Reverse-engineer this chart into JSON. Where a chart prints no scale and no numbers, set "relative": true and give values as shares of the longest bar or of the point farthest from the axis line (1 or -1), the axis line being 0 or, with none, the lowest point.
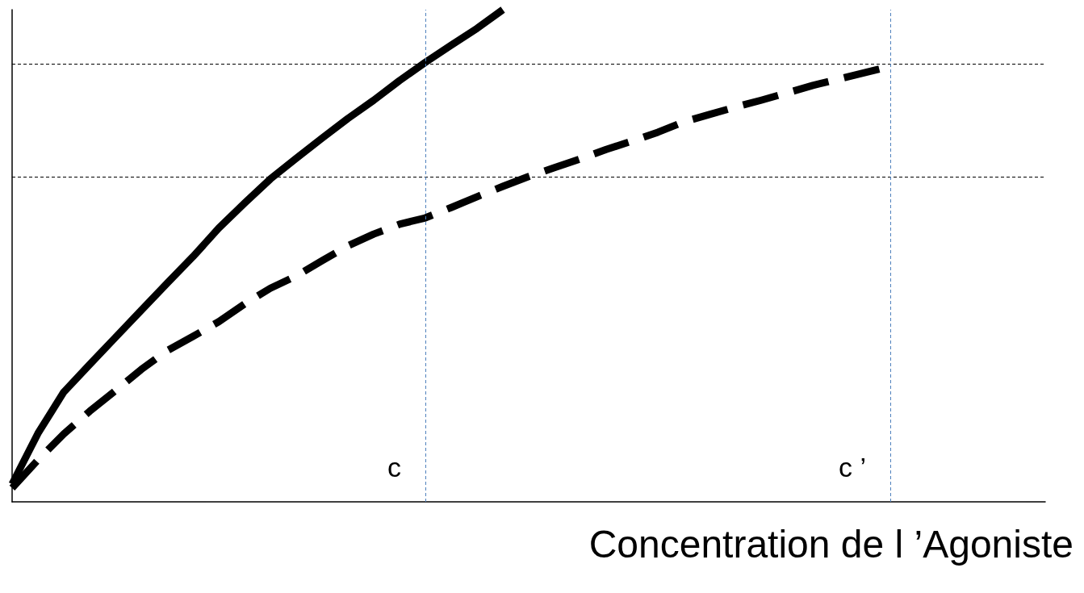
{
  "chart_data": {
    "type": "line",
    "relative": true,
    "xlabel": "Concentration de l ’Agoniste",
    "grid": false,
    "marker": "none",
    "categories": [
      null,
      null,
      null,
      null,
      null,
      null,
      null,
      null,
      null,
      null,
      null,
      null,
      null,
      null,
      null,
      null,
      null,
      null,
      null,
      null,
      null,
      null,
      null,
      null,
      null,
      null,
      null,
      null,
      null,
      null,
      null,
      null,
      null,
      null,
      null,
      null,
      null,
      null,
      null,
      null,
      null
    ],
    "series": [
      {
        "color": "#000000",
        "line_style": "solid",
        "values": [
          0.036,
          0.139,
          0.223,
          0.279,
          0.334,
          0.389,
          0.444,
          0.498,
          0.556,
          0.607,
          0.656,
          0.698,
          0.739,
          0.779,
          0.816,
          0.856,
          0.893,
          0.928,
          0.962,
          1,
          null,
          null,
          null,
          null,
          null,
          null,
          null,
          null,
          null,
          null,
          null,
          null,
          null,
          null,
          null,
          null,
          null,
          null,
          null,
          null,
          null
        ]
      },
      {
        "color": "#000000",
        "line_style": "dashed",
        "values": [
          0.028,
          0.085,
          0.138,
          0.184,
          0.226,
          0.269,
          0.307,
          0.336,
          0.366,
          0.402,
          0.434,
          0.459,
          0.49,
          0.52,
          0.544,
          0.564,
          0.577,
          0.598,
          0.62,
          0.641,
          0.661,
          0.679,
          0.697,
          0.716,
          0.733,
          0.751,
          0.772,
          0.787,
          0.802,
          0.816,
          0.831,
          0.846,
          0.859,
          0.872,
          0.885,
          null,
          null,
          null,
          null,
          null,
          null
        ]
      }
    ],
    "ref_lines": [
      {
        "axis": "y",
        "value": 0.893,
        "color": "#000000",
        "line_style": "dashed"
      },
      {
        "axis": "y",
        "value": 0.657,
        "color": "#000000",
        "line_style": "dashed"
      }
    ],
    "annotations": [
      "c",
      "c ’"
    ]
  }
}
